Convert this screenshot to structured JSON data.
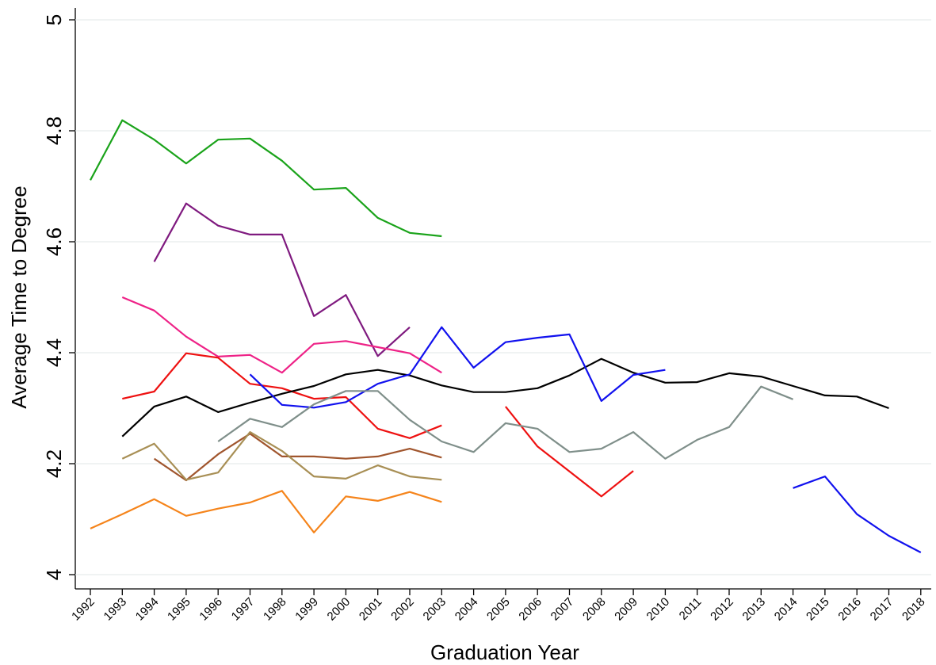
{
  "chart_data": {
    "type": "line",
    "x_label": "Graduation Year",
    "y_label": "Average Time to Degree",
    "categories": [
      "1992",
      "1993",
      "1994",
      "1995",
      "1996",
      "1997",
      "1998",
      "1999",
      "2000",
      "2001",
      "2002",
      "2003",
      "2004",
      "2005",
      "2006",
      "2007",
      "2008",
      "2009",
      "2010",
      "2011",
      "2012",
      "2013",
      "2014",
      "2015",
      "2016",
      "2017",
      "2018"
    ],
    "ylim": [
      4,
      5
    ],
    "yticks": [
      4,
      4.2,
      4.4,
      4.6,
      4.8,
      5
    ],
    "grid": true,
    "series": [
      {
        "color": "#1aa31a",
        "values": [
          4.711,
          4.819,
          4.784,
          4.741,
          4.784,
          4.786,
          4.746,
          4.694,
          4.697,
          4.643,
          4.616,
          4.61,
          null,
          null,
          null,
          null,
          null,
          null,
          null,
          null,
          null,
          null,
          null,
          null,
          null,
          null,
          null
        ]
      },
      {
        "color": "#7f1a7f",
        "values": [
          null,
          null,
          4.564,
          4.669,
          4.629,
          4.613,
          4.613,
          4.466,
          4.504,
          4.394,
          4.446,
          null,
          null,
          null,
          null,
          null,
          null,
          null,
          null,
          null,
          null,
          null,
          null,
          null,
          null,
          null,
          null
        ]
      },
      {
        "color": "#ee2287",
        "values": [
          null,
          4.5,
          4.476,
          4.429,
          4.393,
          4.396,
          4.364,
          4.416,
          4.421,
          4.41,
          4.399,
          4.364,
          null,
          null,
          null,
          null,
          null,
          null,
          null,
          null,
          null,
          null,
          null,
          null,
          null,
          null,
          null
        ]
      },
      {
        "color": "#ee1111",
        "values": [
          null,
          4.317,
          4.33,
          4.399,
          4.391,
          4.344,
          4.336,
          4.317,
          4.32,
          4.263,
          4.246,
          4.269,
          null,
          4.303,
          4.231,
          4.186,
          4.141,
          4.187,
          null,
          null,
          null,
          null,
          null,
          null,
          null,
          null,
          null
        ]
      },
      {
        "color": "#000000",
        "values": [
          null,
          4.249,
          4.303,
          4.321,
          4.293,
          4.31,
          4.326,
          4.34,
          4.361,
          4.369,
          4.359,
          4.341,
          4.329,
          4.329,
          4.336,
          4.359,
          4.389,
          4.364,
          4.346,
          4.347,
          4.363,
          4.357,
          4.34,
          4.323,
          4.321,
          4.3,
          null
        ]
      },
      {
        "color": "#1111ee",
        "values": [
          null,
          null,
          null,
          null,
          null,
          4.361,
          4.306,
          4.301,
          4.311,
          4.344,
          4.361,
          4.446,
          4.373,
          4.419,
          4.427,
          4.433,
          4.313,
          4.36,
          4.369,
          null,
          null,
          null,
          4.156,
          4.177,
          4.109,
          4.07,
          4.04
        ]
      },
      {
        "color": "#7f8f8a",
        "values": [
          null,
          null,
          null,
          null,
          4.24,
          4.281,
          4.266,
          4.307,
          4.331,
          4.331,
          4.279,
          4.24,
          4.221,
          4.273,
          4.263,
          4.221,
          4.227,
          4.257,
          4.209,
          4.243,
          4.266,
          4.339,
          4.316,
          null,
          null,
          null,
          null
        ]
      },
      {
        "color": "#a0552d",
        "values": [
          null,
          null,
          4.209,
          4.17,
          4.217,
          4.254,
          4.213,
          4.213,
          4.209,
          4.213,
          4.227,
          4.211,
          null,
          null,
          null,
          null,
          null,
          null,
          null,
          null,
          null,
          null,
          null,
          null,
          null,
          null,
          null
        ]
      },
      {
        "color": "#a88f55",
        "values": [
          null,
          4.209,
          4.236,
          4.171,
          4.184,
          4.257,
          4.223,
          4.177,
          4.173,
          4.197,
          4.177,
          4.171,
          null,
          null,
          null,
          null,
          null,
          null,
          null,
          null,
          null,
          null,
          null,
          null,
          null,
          null,
          null
        ]
      },
      {
        "color": "#f5841b",
        "values": [
          4.083,
          4.109,
          4.136,
          4.106,
          4.119,
          4.13,
          4.151,
          4.076,
          4.141,
          4.133,
          4.149,
          4.131,
          null,
          null,
          null,
          null,
          null,
          null,
          null,
          null,
          null,
          null,
          null,
          null,
          null,
          null,
          null
        ]
      }
    ]
  }
}
